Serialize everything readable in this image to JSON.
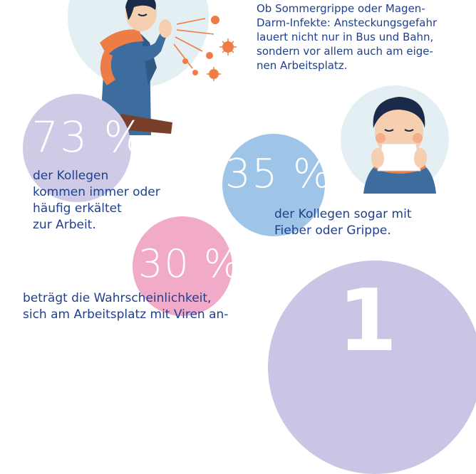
{
  "intro": {
    "lines": [
      "Ob Sommergrippe oder Magen-",
      "Darm-Infekte: Ansteckungsgefahr",
      "lauert nicht nur in Bus und Bahn,",
      "sondern vor allem auch am eige-",
      "nen Arbeitsplatz."
    ]
  },
  "stats": [
    {
      "value": "73 %",
      "lines": [
        "der Kollegen",
        "kommen immer oder",
        "häufig erkältet",
        "zur Arbeit."
      ]
    },
    {
      "value": "35 %",
      "lines": [
        "der Kollegen sogar mit",
        "Fieber oder Grippe."
      ]
    },
    {
      "value": "30 %",
      "lines": [
        "beträgt die Wahrscheinlichkeit,",
        "sich am Arbeitsplatz mit Viren an-"
      ]
    },
    {
      "value": "1"
    }
  ],
  "colors": {
    "text": "#1f3f8f",
    "circle_lavender": "#cfcbe6",
    "circle_blue": "#9ec5e8",
    "circle_pink": "#f2aac9",
    "circle_big": "#c9c5e4",
    "illustration_bg": "#e3eff2"
  },
  "icons": [
    "sneezing-man-illustration",
    "nose-blowing-woman-illustration"
  ]
}
